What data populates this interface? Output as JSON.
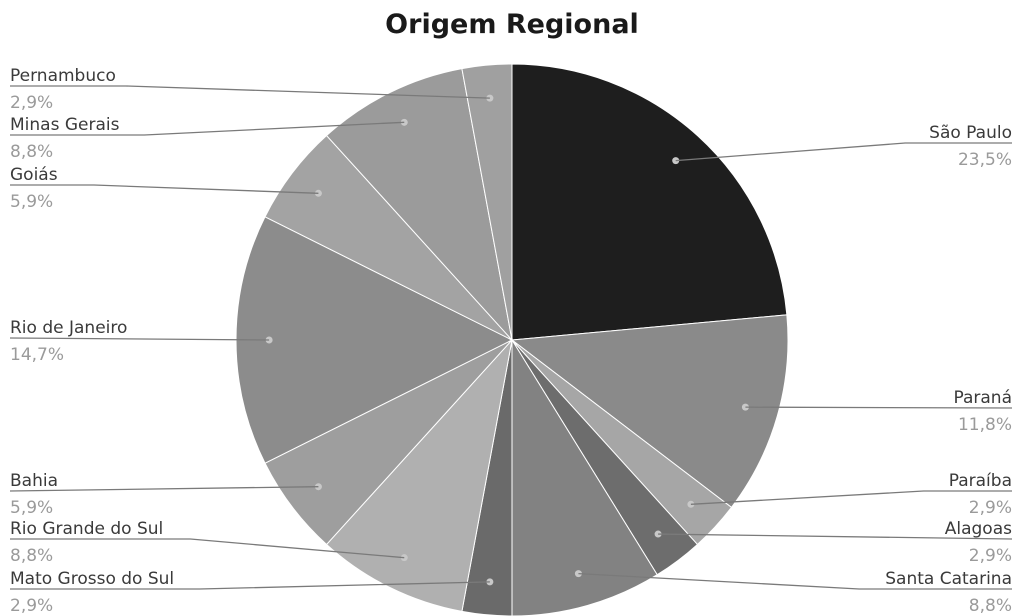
{
  "chart_data": {
    "type": "pie",
    "title": "Origem Regional",
    "slices": [
      {
        "name": "São Paulo",
        "value": 23.5,
        "label": "23,5%",
        "color": "#1e1e1e"
      },
      {
        "name": "Paraná",
        "value": 11.8,
        "label": "11,8%",
        "color": "#8a8a8a"
      },
      {
        "name": "Paraíba",
        "value": 2.9,
        "label": "2,9%",
        "color": "#a6a6a6"
      },
      {
        "name": "Alagoas",
        "value": 2.9,
        "label": "2,9%",
        "color": "#6d6d6d"
      },
      {
        "name": "Santa Catarina",
        "value": 8.8,
        "label": "8,8%",
        "color": "#828282"
      },
      {
        "name": "Mato Grosso do Sul",
        "value": 2.9,
        "label": "2,9%",
        "color": "#6a6a6a"
      },
      {
        "name": "Rio Grande do Sul",
        "value": 8.8,
        "label": "8,8%",
        "color": "#b0b0b0"
      },
      {
        "name": "Bahia",
        "value": 5.9,
        "label": "5,9%",
        "color": "#9e9e9e"
      },
      {
        "name": "Rio de Janeiro",
        "value": 14.7,
        "label": "14,7%",
        "color": "#8c8c8c"
      },
      {
        "name": "Goiás",
        "value": 5.9,
        "label": "5,9%",
        "color": "#a3a3a3"
      },
      {
        "name": "Minas Gerais",
        "value": 8.8,
        "label": "8,8%",
        "color": "#9b9b9b"
      },
      {
        "name": "Pernambuco",
        "value": 2.9,
        "label": "2,9%",
        "color": "#a0a0a0"
      }
    ],
    "legend": "none",
    "start_angle_deg": 0,
    "direction": "clockwise"
  }
}
